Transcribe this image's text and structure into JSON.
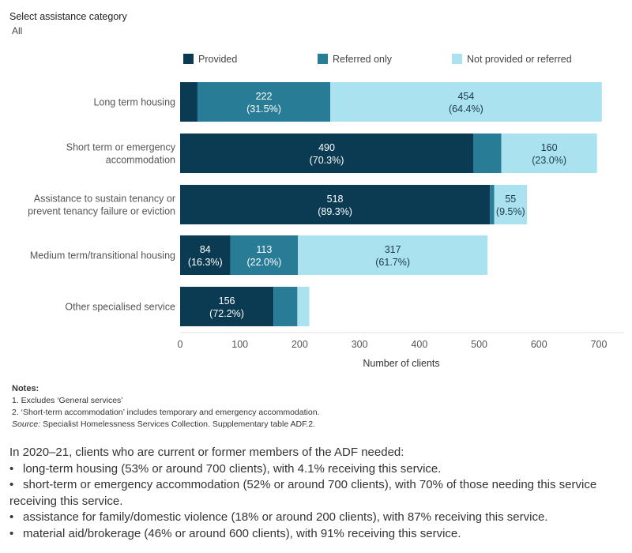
{
  "filter": {
    "label": "Select assistance category",
    "value": "All"
  },
  "chart_data": {
    "type": "bar",
    "orientation": "horizontal",
    "stacked": true,
    "categories": [
      [
        "Long term housing"
      ],
      [
        "Short term or emergency",
        "accommodation"
      ],
      [
        "Assistance to sustain tenancy or",
        "prevent tenancy failure or eviction"
      ],
      [
        "Medium term/transitional housing"
      ],
      [
        "Other specialised service"
      ]
    ],
    "series": [
      {
        "name": "Provided",
        "color": "#0b3a53",
        "values": [
          29,
          490,
          518,
          84,
          156
        ],
        "labels": [
          null,
          [
            "490",
            "(70.3%)"
          ],
          [
            "518",
            "(89.3%)"
          ],
          [
            "84",
            "(16.3%)"
          ],
          [
            "156",
            "(72.2%)"
          ]
        ]
      },
      {
        "name": "Referred only",
        "color": "#287c96",
        "values": [
          222,
          47,
          7,
          113,
          40
        ],
        "labels": [
          [
            "222",
            "(31.5%)"
          ],
          null,
          null,
          [
            "113",
            "(22.0%)"
          ],
          null
        ]
      },
      {
        "name": "Not provided or referred",
        "color": "#aae2ef",
        "values": [
          454,
          160,
          55,
          317,
          20
        ],
        "labels": [
          [
            "454",
            "(64.4%)"
          ],
          [
            "160",
            "(23.0%)"
          ],
          [
            "55",
            "(9.5%)"
          ],
          [
            "317",
            "(61.7%)"
          ],
          null
        ]
      }
    ],
    "xlabel": "Number of clients",
    "xlim": [
      0,
      700
    ],
    "xticks": [
      0,
      100,
      200,
      300,
      400,
      500,
      600,
      700
    ],
    "legend_position": "top"
  },
  "notes": {
    "title": "Notes:",
    "items": [
      "1. Excludes ‘General services’",
      "2. ‘Short-term accommodation’ includes temporary and emergency accommodation."
    ],
    "source_label": "Source:",
    "source_text": " Specialist Homelessness Services Collection. Supplementary table ADF.2."
  },
  "summary": {
    "intro": "In 2020–21, clients who are current or former members of the ADF needed:",
    "bullet": "•",
    "items": [
      "long-term housing (53% or around  700 clients), with 4.1% receiving this service.",
      "short-term or emergency accommodation (52% or around 700 clients), with 70% of those needing this service receiving this service.",
      "assistance for family/domestic violence (18% or around  200 clients), with 87% receiving this service.",
      "material aid/brokerage (46% or around 600 clients), with 91% receiving this service."
    ]
  }
}
